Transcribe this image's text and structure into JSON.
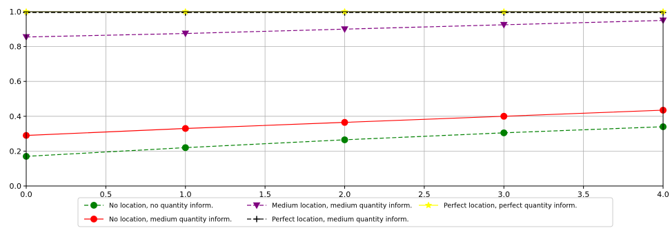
{
  "chart_data": {
    "type": "line",
    "title": "",
    "xlabel": "",
    "ylabel": "",
    "xlim": [
      0.0,
      4.0
    ],
    "ylim": [
      0.0,
      1.0
    ],
    "x_ticks": [
      "0.0",
      "0.5",
      "1.0",
      "1.5",
      "2.0",
      "2.5",
      "3.0",
      "3.5",
      "4.0"
    ],
    "y_ticks": [
      "0.0",
      "0.2",
      "0.4",
      "0.6",
      "0.8",
      "1.0"
    ],
    "grid": true,
    "legend_placement": "bottom-center",
    "series": [
      {
        "name": "No location, no quantity inform.",
        "color": "#008000",
        "line": "dashed",
        "marker": "circle",
        "x": [
          0,
          1,
          2,
          3,
          4
        ],
        "y": [
          0.17,
          0.22,
          0.265,
          0.305,
          0.34
        ]
      },
      {
        "name": "No location, medium quantity inform.",
        "color": "#ff0000",
        "line": "solid",
        "marker": "circle",
        "x": [
          0,
          1,
          2,
          3,
          4
        ],
        "y": [
          0.29,
          0.33,
          0.365,
          0.4,
          0.435
        ]
      },
      {
        "name": "Medium location, medium quantity inform.",
        "color": "#800080",
        "line": "dashed",
        "marker": "triangle-down",
        "x": [
          0,
          1,
          2,
          3,
          4
        ],
        "y": [
          0.855,
          0.875,
          0.9,
          0.925,
          0.95
        ]
      },
      {
        "name": "Perfect location, medium quantity inform.",
        "color": "#000000",
        "line": "dashed",
        "marker": "plus",
        "x": [
          0,
          1,
          2,
          3,
          4
        ],
        "y": [
          0.995,
          0.995,
          0.995,
          0.995,
          0.995
        ]
      },
      {
        "name": "Perfect location, perfect quantity inform.",
        "color": "#ffff00",
        "line": "solid",
        "marker": "star",
        "x": [
          0,
          1,
          2,
          3,
          4
        ],
        "y": [
          1.0,
          1.0,
          1.0,
          1.0,
          1.0
        ]
      }
    ]
  }
}
